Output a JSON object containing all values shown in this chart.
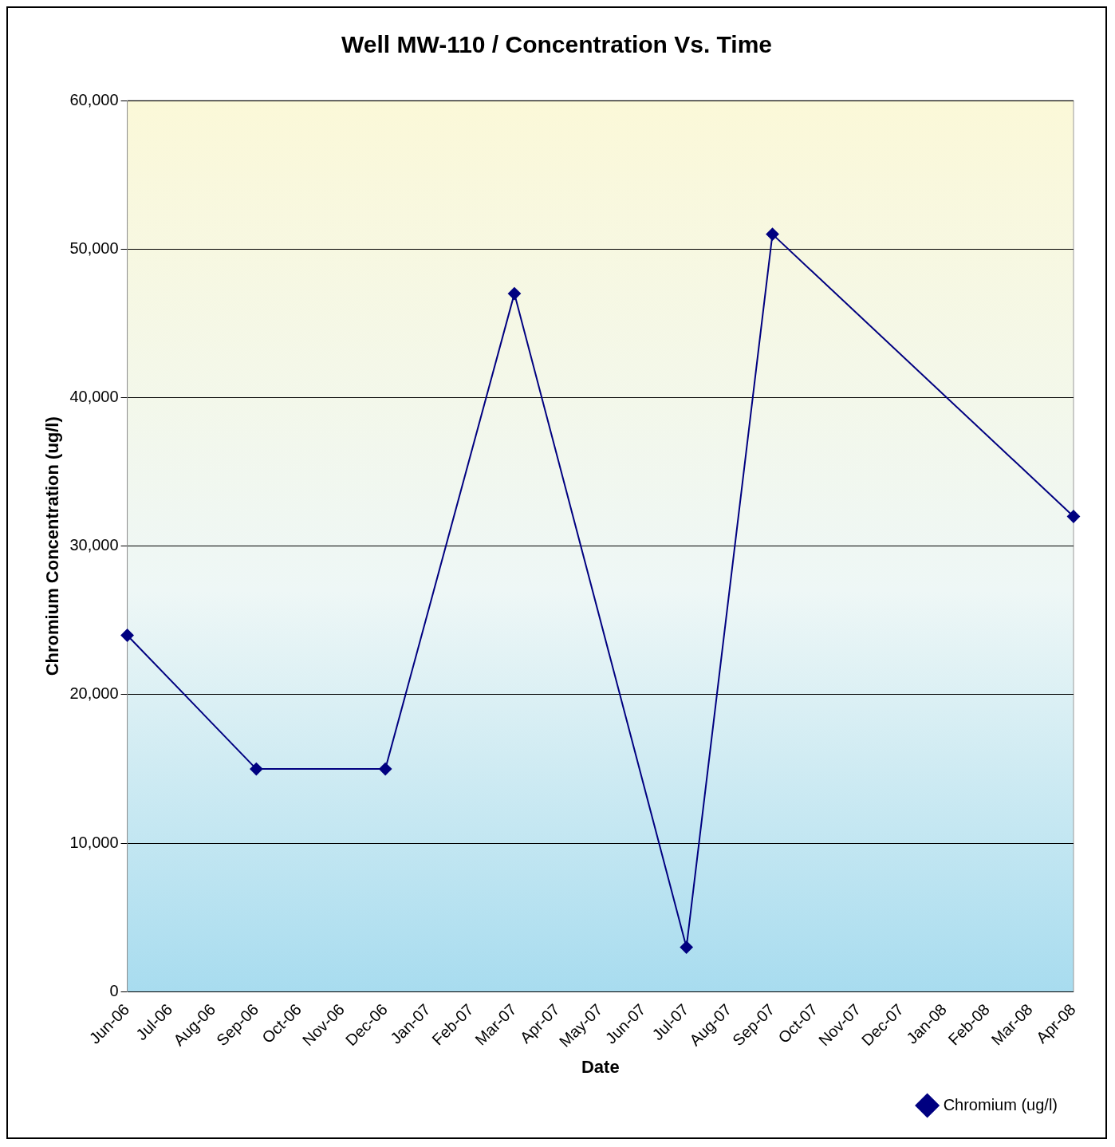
{
  "chart_data": {
    "type": "line",
    "title": "Well MW-110 / Concentration Vs. Time",
    "xlabel": "Date",
    "ylabel": "Chromium Concentration (ug/l)",
    "categories": [
      "Jun-06",
      "Jul-06",
      "Aug-06",
      "Sep-06",
      "Oct-06",
      "Nov-06",
      "Dec-06",
      "Jan-07",
      "Feb-07",
      "Mar-07",
      "Apr-07",
      "May-07",
      "Jun-07",
      "Jul-07",
      "Aug-07",
      "Sep-07",
      "Oct-07",
      "Nov-07",
      "Dec-07",
      "Jan-08",
      "Feb-08",
      "Mar-08",
      "Apr-08"
    ],
    "series": [
      {
        "name": "Chromium (ug/l)",
        "color": "#000080",
        "values": [
          24000,
          null,
          null,
          15000,
          null,
          null,
          15000,
          null,
          null,
          47000,
          null,
          null,
          null,
          3000,
          null,
          51000,
          null,
          null,
          null,
          null,
          null,
          null,
          32000
        ]
      }
    ],
    "ylim": [
      0,
      60000
    ],
    "yticks": [
      {
        "value": 0,
        "label": "0"
      },
      {
        "value": 10000,
        "label": "10,000"
      },
      {
        "value": 20000,
        "label": "20,000"
      },
      {
        "value": 30000,
        "label": "30,000"
      },
      {
        "value": 40000,
        "label": "40,000"
      },
      {
        "value": 50000,
        "label": "50,000"
      },
      {
        "value": 60000,
        "label": "60,000"
      }
    ],
    "grid": "y",
    "legend": "bottom right",
    "marker": "diamond",
    "line_style": "solid"
  }
}
